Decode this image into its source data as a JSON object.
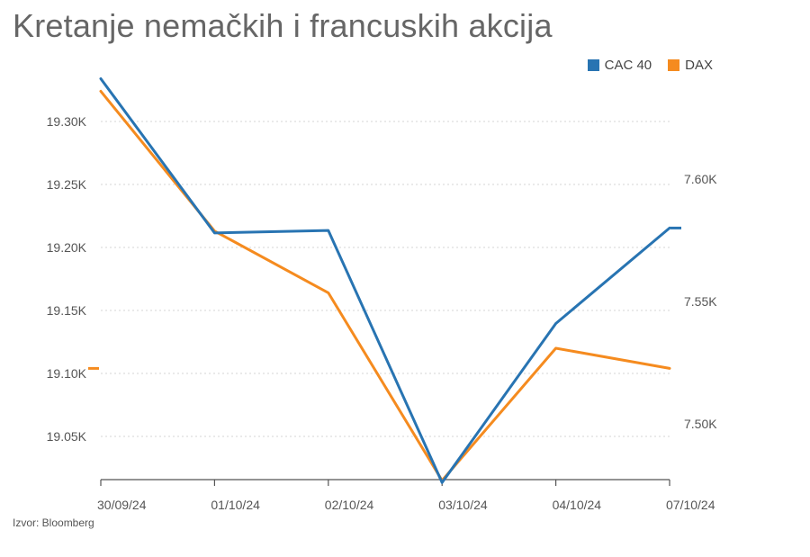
{
  "title": "Kretanje nemačkih i francuskih akcija",
  "source": "Izvor: Bloomberg",
  "chart_data": {
    "type": "line",
    "x": [
      "30/09/24",
      "01/10/24",
      "02/10/24",
      "03/10/24",
      "04/10/24",
      "07/10/24"
    ],
    "series": [
      {
        "name": "CAC 40",
        "axis": "right",
        "color": "#2874b2",
        "values": [
          7641,
          7578,
          7579,
          7476,
          7541,
          7580
        ]
      },
      {
        "name": "DAX",
        "axis": "left",
        "color": "#f58b1f",
        "values": [
          19324,
          19213,
          19164,
          19015,
          19120,
          19104
        ]
      }
    ],
    "left_axis": {
      "ticks": [
        19050,
        19100,
        19150,
        19200,
        19250,
        19300
      ],
      "tick_labels": [
        "19.05K",
        "19.10K",
        "19.15K",
        "19.20K",
        "19.25K",
        "19.30K"
      ]
    },
    "right_axis": {
      "ticks": [
        7500,
        7550,
        7600
      ],
      "tick_labels": [
        "7.50K",
        "7.55K",
        "7.60K"
      ]
    },
    "grid": true,
    "legend": "top-right"
  }
}
